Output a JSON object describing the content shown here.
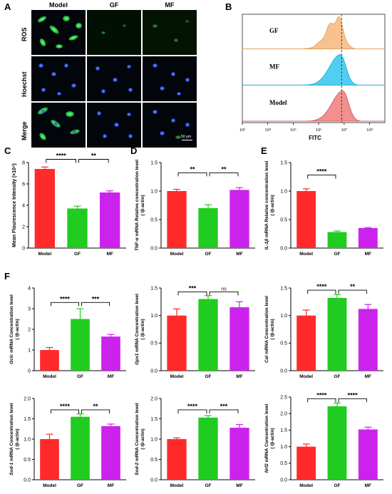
{
  "panels": {
    "A": "A",
    "B": "B",
    "C": "C",
    "D": "D",
    "E": "E",
    "F": "F"
  },
  "microscopy": {
    "columns": [
      "Model",
      "GF",
      "MF"
    ],
    "rows": [
      "ROS",
      "Hoechst",
      "Merge"
    ],
    "scale_bar": "50 μm"
  },
  "colors": {
    "model": "#ff2a2a",
    "gf": "#1fcc1f",
    "mf": "#cc22ee",
    "flow_gf": "#f6b77a",
    "flow_mf": "#33c6ee",
    "flow_model": "#f07b7b"
  },
  "chart_data": [
    {
      "id": "B",
      "type": "area",
      "tracks": [
        "GF",
        "MF",
        "Model"
      ],
      "xlabel": "FITC",
      "xticks": [
        "10³",
        "10⁴",
        "10⁵",
        "10⁶",
        "10⁷",
        "10⁸"
      ],
      "x_log_range": [
        3,
        8.6
      ],
      "dashed_line_x_log": 6.9,
      "peaks_log": [
        6.75,
        6.85,
        6.95
      ]
    },
    {
      "id": "C",
      "type": "bar",
      "ylabel": "Mean Flourescence Intensity (×10⁴)",
      "categories": [
        "Model",
        "GF",
        "MF"
      ],
      "values": [
        7.4,
        3.7,
        5.2
      ],
      "errors": [
        0.18,
        0.22,
        0.15
      ],
      "ylim": [
        0,
        8
      ],
      "yticks": [
        "0",
        "2",
        "4",
        "6",
        "8"
      ],
      "sig": [
        {
          "from": 0,
          "to": 1,
          "label": "****",
          "level": 8.3
        },
        {
          "from": 1,
          "to": 2,
          "label": "**",
          "level": 8.3
        }
      ]
    },
    {
      "id": "D",
      "type": "bar",
      "gene": "TNF-α",
      "ylabel_rest": " mRNA Relative concentration level",
      "ylabel_line2": "( /β-actin)",
      "categories": [
        "Model",
        "GF",
        "MF"
      ],
      "values": [
        1.0,
        0.7,
        1.02
      ],
      "errors": [
        0.03,
        0.06,
        0.04
      ],
      "ylim": [
        0,
        1.5
      ],
      "yticks": [
        "0.0",
        "0.5",
        "1.0",
        "1.5"
      ],
      "sig": [
        {
          "from": 0,
          "to": 1,
          "label": "**",
          "level": 1.32
        },
        {
          "from": 1,
          "to": 2,
          "label": "**",
          "level": 1.32
        }
      ]
    },
    {
      "id": "E",
      "type": "bar",
      "gene": "IL-1β",
      "ylabel_rest": " mRNA Relative concentration level",
      "ylabel_line2": "( /β-actin)",
      "categories": [
        "Model",
        "GF",
        "MF"
      ],
      "values": [
        1.0,
        0.28,
        0.35
      ],
      "errors": [
        0.04,
        0.02,
        0.01
      ],
      "ylim": [
        0,
        1.5
      ],
      "yticks": [
        "0.0",
        "0.5",
        "1.0",
        "1.5"
      ],
      "sig": [
        {
          "from": 0,
          "to": 1,
          "label": "****",
          "level": 1.28
        }
      ]
    },
    {
      "id": "F1",
      "type": "bar",
      "gene": "Gclc",
      "ylabel_rest": " mRNA Concentration level",
      "ylabel_line2": "( /β-actin)",
      "categories": [
        "Model",
        "GF",
        "MF"
      ],
      "values": [
        1.0,
        2.5,
        1.65
      ],
      "errors": [
        0.12,
        0.5,
        0.1
      ],
      "ylim": [
        0,
        4
      ],
      "yticks": [
        "0",
        "1",
        "2",
        "3",
        "4"
      ],
      "sig": [
        {
          "from": 0,
          "to": 1,
          "label": "****",
          "level": 3.3
        },
        {
          "from": 1,
          "to": 2,
          "label": "***",
          "level": 3.3
        }
      ]
    },
    {
      "id": "F2",
      "type": "bar",
      "gene": "Gpx1",
      "ylabel_rest": " mRNA Concentration level",
      "ylabel_line2": "( /β-actin)",
      "categories": [
        "Model",
        "GF",
        "MF"
      ],
      "values": [
        1.0,
        1.3,
        1.15
      ],
      "errors": [
        0.12,
        0.06,
        0.1
      ],
      "ylim": [
        0,
        1.5
      ],
      "yticks": [
        "0.0",
        "0.5",
        "1.0",
        "1.5"
      ],
      "sig": [
        {
          "from": 0,
          "to": 1,
          "label": "***",
          "level": 1.43
        },
        {
          "from": 1,
          "to": 2,
          "label": "ns",
          "level": 1.43
        }
      ]
    },
    {
      "id": "F3",
      "type": "bar",
      "gene": "Cat",
      "ylabel_rest": " mRNA Concentration level",
      "ylabel_line2": "( /β-actin)",
      "categories": [
        "Model",
        "GF",
        "MF"
      ],
      "values": [
        1.0,
        1.32,
        1.12
      ],
      "errors": [
        0.1,
        0.06,
        0.08
      ],
      "ylim": [
        0,
        1.5
      ],
      "yticks": [
        "0.0",
        "0.5",
        "1.0",
        "1.5"
      ],
      "sig": [
        {
          "from": 0,
          "to": 1,
          "label": "****",
          "level": 1.46
        },
        {
          "from": 1,
          "to": 2,
          "label": "**",
          "level": 1.46
        }
      ]
    },
    {
      "id": "F4",
      "type": "bar",
      "gene": "Sod-1",
      "ylabel_rest": " mRNA Concentration level",
      "ylabel_line2": "( /β-actin)",
      "categories": [
        "Model",
        "GF",
        "MF"
      ],
      "values": [
        1.0,
        1.55,
        1.32
      ],
      "errors": [
        0.12,
        0.07,
        0.05
      ],
      "ylim": [
        0,
        2.0
      ],
      "yticks": [
        "0.0",
        "0.5",
        "1.0",
        "1.5",
        "2.0"
      ],
      "sig": [
        {
          "from": 0,
          "to": 1,
          "label": "****",
          "level": 1.72
        },
        {
          "from": 1,
          "to": 2,
          "label": "**",
          "level": 1.72
        }
      ]
    },
    {
      "id": "F5",
      "type": "bar",
      "gene": "Sod-2",
      "ylabel_rest": " mRNA Concentration level",
      "ylabel_line2": "( /β-actin)",
      "categories": [
        "Model",
        "GF",
        "MF"
      ],
      "values": [
        1.0,
        1.53,
        1.28
      ],
      "errors": [
        0.03,
        0.05,
        0.08
      ],
      "ylim": [
        0,
        2.0
      ],
      "yticks": [
        "0.0",
        "0.5",
        "1.0",
        "1.5",
        "2.0"
      ],
      "sig": [
        {
          "from": 0,
          "to": 1,
          "label": "****",
          "level": 1.72
        },
        {
          "from": 1,
          "to": 2,
          "label": "***",
          "level": 1.72
        }
      ]
    },
    {
      "id": "F6",
      "type": "bar",
      "gene": "Nrf2",
      "ylabel_rest": " mRNA Concentration level",
      "ylabel_line2": "( /β-actin)",
      "categories": [
        "Model",
        "GF",
        "MF"
      ],
      "values": [
        1.0,
        2.22,
        1.52
      ],
      "errors": [
        0.08,
        0.1,
        0.07
      ],
      "ylim": [
        0,
        2.5
      ],
      "yticks": [
        "0.0",
        "0.5",
        "1.0",
        "1.5",
        "2.0",
        "2.5"
      ],
      "sig": [
        {
          "from": 0,
          "to": 1,
          "label": "****",
          "level": 2.45
        },
        {
          "from": 1,
          "to": 2,
          "label": "****",
          "level": 2.45
        }
      ]
    }
  ]
}
